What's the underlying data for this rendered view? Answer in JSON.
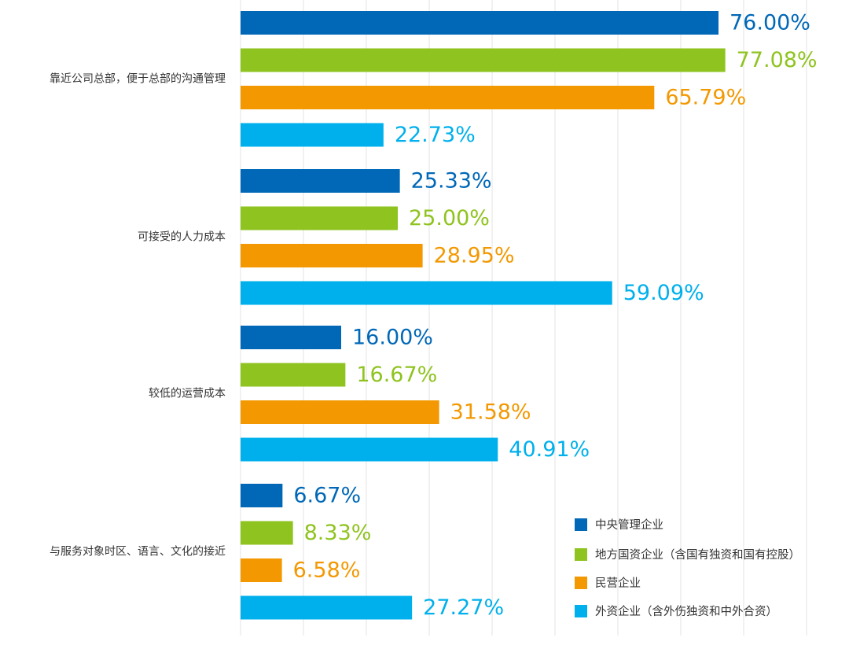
{
  "chart_data": {
    "type": "bar",
    "orientation": "horizontal",
    "categories": [
      "靠近公司总部，便于总部的沟通管理",
      "可接受的人力成本",
      "较低的运营成本",
      "与服务对象时区、语言、文化的接近"
    ],
    "series": [
      {
        "name": "中央管理企业",
        "color": "#0068b7",
        "values": [
          76.0,
          25.33,
          16.0,
          6.67
        ]
      },
      {
        "name": "地方国资企业（含国有独资和国有控股）",
        "color": "#8fc31f",
        "values": [
          77.08,
          25.0,
          16.67,
          8.33
        ]
      },
      {
        "name": "民营企业",
        "color": "#f39800",
        "values": [
          65.79,
          28.95,
          31.58,
          6.58
        ]
      },
      {
        "name": "外资企业（含外伤独资和中外合资）",
        "color": "#00b0ec",
        "values": [
          22.73,
          59.09,
          40.91,
          27.27
        ]
      }
    ],
    "value_labels": [
      [
        "76.00%",
        "25.33%",
        "16.00%",
        "6.67%"
      ],
      [
        "77.08%",
        "25.00%",
        "16.67%",
        "8.33%"
      ],
      [
        "65.79%",
        "28.95%",
        "31.58%",
        "6.58%"
      ],
      [
        "22.73%",
        "59.09%",
        "40.91%",
        "27.27%"
      ]
    ],
    "xlim": [
      0,
      90
    ],
    "grid": true,
    "legend_position": "bottom-right"
  }
}
